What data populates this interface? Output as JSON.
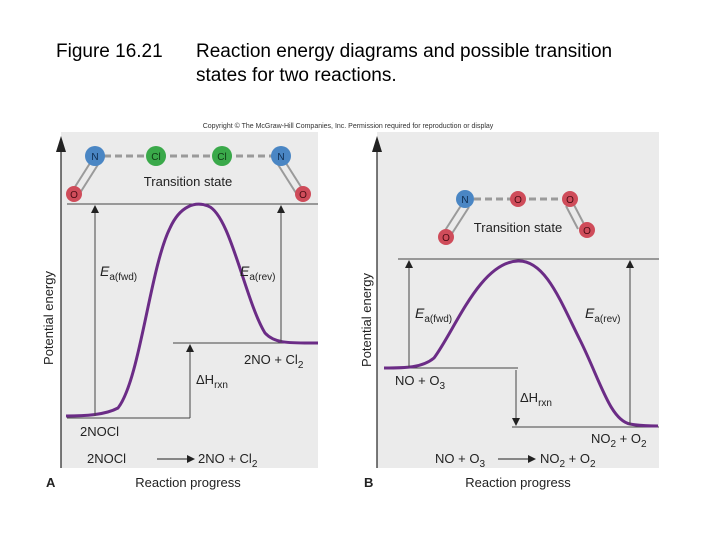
{
  "caption": {
    "figure_number": "Figure 16.21",
    "title_line1": "Reaction energy diagrams and possible transition",
    "title_line2": "states for two reactions."
  },
  "copyright": "Copyright © The McGraw-Hill Companies, Inc. Permission required for reproduction or display",
  "colors": {
    "curve": "#6b2c86",
    "panel_bg": "#ebebeb",
    "nitrogen": "#4a86c4",
    "chlorine": "#3aa94a",
    "oxygen": "#cf4c5a"
  },
  "panel_a": {
    "letter": "A",
    "y_axis_label": "Potential energy",
    "x_axis_label": "Reaction progress",
    "transition_state_label": "Transition state",
    "molecule_atoms": [
      "N",
      "Cl",
      "Cl",
      "N",
      "O",
      "O"
    ],
    "ea_fwd": "E",
    "ea_fwd_sub": "a(fwd)",
    "ea_rev": "E",
    "ea_rev_sub": "a(rev)",
    "delta_h": "ΔH",
    "delta_h_sub": "rxn",
    "reactant_label": "2NOCl",
    "product_label": "2NO + Cl",
    "product_sub": "2",
    "eq_left": "2NOCl",
    "eq_right": "2NO + Cl",
    "eq_right_sub": "2"
  },
  "panel_b": {
    "letter": "B",
    "y_axis_label": "Potential energy",
    "x_axis_label": "Reaction progress",
    "transition_state_label": "Transition state",
    "molecule_atoms": [
      "N",
      "O",
      "O",
      "O",
      "O"
    ],
    "ea_fwd": "E",
    "ea_fwd_sub": "a(fwd)",
    "ea_rev": "E",
    "ea_rev_sub": "a(rev)",
    "delta_h": "ΔH",
    "delta_h_sub": "rxn",
    "reactant_label": "NO + O",
    "reactant_sub": "3",
    "product_label": "NO",
    "product_sub1": "2",
    "product_label2": " + O",
    "product_sub2": "2",
    "eq_left": "NO + O",
    "eq_left_sub": "3",
    "eq_right": "NO",
    "eq_right_sub1": "2",
    "eq_right2": " + O",
    "eq_right_sub2": "2"
  }
}
